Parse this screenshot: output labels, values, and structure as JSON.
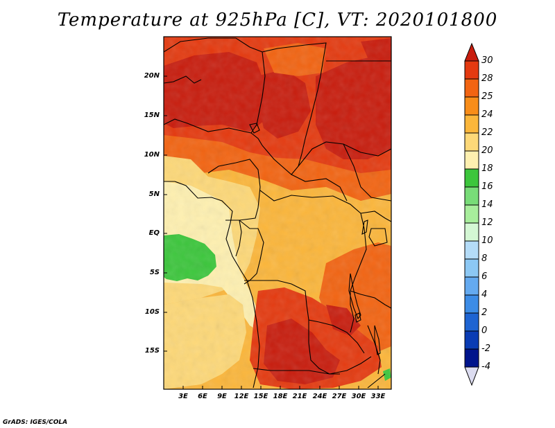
{
  "title": "Temperature at 925hPa [C], VT: 2020101800",
  "credit": "GrADS: IGES/COLA",
  "lat_ticks": [
    "20N",
    "15N",
    "10N",
    "5N",
    "EQ",
    "5S",
    "10S",
    "15S"
  ],
  "lon_ticks": [
    "3E",
    "6E",
    "9E",
    "12E",
    "15E",
    "18E",
    "21E",
    "24E",
    "27E",
    "30E",
    "33E"
  ],
  "colorbar": {
    "labels": [
      "30",
      "28",
      "25",
      "24",
      "22",
      "20",
      "18",
      "16",
      "14",
      "12",
      "10",
      "8",
      "6",
      "4",
      "2",
      "0",
      "-2",
      "-4"
    ],
    "colors": [
      "#c81d0e",
      "#e43a10",
      "#f26412",
      "#f88d19",
      "#fbb63b",
      "#fdd878",
      "#fef0b0",
      "#3cc63c",
      "#78dc78",
      "#a8ee9c",
      "#d4f7d4",
      "#b4dcf8",
      "#8cc8f4",
      "#64aaf0",
      "#3c8ce6",
      "#1e64d2",
      "#0a3cb4",
      "#00148c",
      "#dcdcf0"
    ]
  },
  "map_colors": {
    "hot": "#c81d0e",
    "very_warm": "#e43a10",
    "warm": "#f26412",
    "orange": "#f88d19",
    "light_orange": "#fbb63b",
    "yellow": "#fdd878",
    "pale": "#fef0b0",
    "green": "#3cc63c"
  }
}
